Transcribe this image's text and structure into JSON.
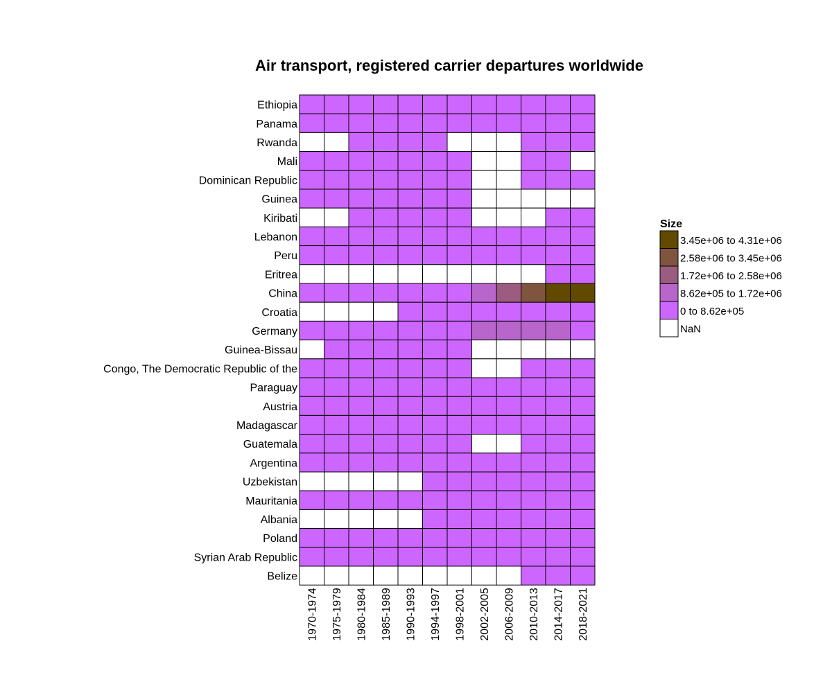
{
  "chart_data": {
    "type": "heatmap",
    "title": "Air transport, registered carrier departures worldwide",
    "columns": [
      "1970-1974",
      "1975-1979",
      "1980-1984",
      "1985-1989",
      "1990-1993",
      "1994-1997",
      "1998-2001",
      "2002-2005",
      "2006-2009",
      "2010-2013",
      "2014-2017",
      "2018-2021"
    ],
    "rows": [
      "Ethiopia",
      "Panama",
      "Rwanda",
      "Mali",
      "Dominican Republic",
      "Guinea",
      "Kiribati",
      "Lebanon",
      "Peru",
      "Eritrea",
      "China",
      "Croatia",
      "Germany",
      "Guinea-Bissau",
      "Congo, The Democratic Republic of the",
      "Paraguay",
      "Austria",
      "Madagascar",
      "Guatemala",
      "Argentina",
      "Uzbekistan",
      "Mauritania",
      "Albania",
      "Poland",
      "Syrian Arab Republic",
      "Belize"
    ],
    "bin_index": [
      [
        1,
        1,
        1,
        1,
        1,
        1,
        1,
        1,
        1,
        1,
        1,
        1
      ],
      [
        1,
        1,
        1,
        1,
        1,
        1,
        1,
        1,
        1,
        1,
        1,
        1
      ],
      [
        0,
        0,
        1,
        1,
        1,
        1,
        0,
        0,
        0,
        1,
        1,
        1
      ],
      [
        1,
        1,
        1,
        1,
        1,
        1,
        1,
        0,
        0,
        1,
        1,
        0
      ],
      [
        1,
        1,
        1,
        1,
        1,
        1,
        1,
        0,
        0,
        1,
        1,
        1
      ],
      [
        1,
        1,
        1,
        1,
        1,
        1,
        1,
        0,
        0,
        0,
        0,
        0
      ],
      [
        0,
        0,
        1,
        1,
        1,
        1,
        1,
        0,
        0,
        0,
        1,
        1
      ],
      [
        1,
        1,
        1,
        1,
        1,
        1,
        1,
        1,
        1,
        1,
        1,
        1
      ],
      [
        1,
        1,
        1,
        1,
        1,
        1,
        1,
        1,
        1,
        1,
        1,
        1
      ],
      [
        0,
        0,
        0,
        0,
        0,
        0,
        0,
        0,
        0,
        0,
        1,
        1
      ],
      [
        1,
        1,
        1,
        1,
        1,
        1,
        1,
        2,
        3,
        4,
        5,
        5
      ],
      [
        0,
        0,
        0,
        0,
        1,
        1,
        1,
        1,
        1,
        1,
        1,
        1
      ],
      [
        1,
        1,
        1,
        1,
        1,
        1,
        1,
        2,
        2,
        2,
        2,
        1
      ],
      [
        0,
        1,
        1,
        1,
        1,
        1,
        1,
        0,
        0,
        0,
        0,
        0
      ],
      [
        1,
        1,
        1,
        1,
        1,
        1,
        1,
        0,
        0,
        1,
        1,
        1
      ],
      [
        1,
        1,
        1,
        1,
        1,
        1,
        1,
        1,
        1,
        1,
        1,
        1
      ],
      [
        1,
        1,
        1,
        1,
        1,
        1,
        1,
        1,
        1,
        1,
        1,
        1
      ],
      [
        1,
        1,
        1,
        1,
        1,
        1,
        1,
        1,
        1,
        1,
        1,
        1
      ],
      [
        1,
        1,
        1,
        1,
        1,
        1,
        1,
        0,
        0,
        1,
        1,
        1
      ],
      [
        1,
        1,
        1,
        1,
        1,
        1,
        1,
        1,
        1,
        1,
        1,
        1
      ],
      [
        0,
        0,
        0,
        0,
        0,
        1,
        1,
        1,
        1,
        1,
        1,
        1
      ],
      [
        1,
        1,
        1,
        1,
        1,
        1,
        1,
        1,
        1,
        1,
        1,
        1
      ],
      [
        0,
        0,
        0,
        0,
        0,
        1,
        1,
        1,
        1,
        1,
        1,
        1
      ],
      [
        1,
        1,
        1,
        1,
        1,
        1,
        1,
        1,
        1,
        1,
        1,
        1
      ],
      [
        1,
        1,
        1,
        1,
        1,
        1,
        1,
        1,
        1,
        1,
        1,
        1
      ],
      [
        0,
        0,
        0,
        0,
        0,
        0,
        0,
        0,
        0,
        1,
        1,
        1
      ]
    ],
    "legend": {
      "title": "Size",
      "placement": "right",
      "bins": [
        {
          "label": "NaN",
          "color": "#ffffff"
        },
        {
          "label": "0 to 8.62e+05",
          "color": "#cc66ff"
        },
        {
          "label": "8.62e+05 to 1.72e+06",
          "color": "#b866cc"
        },
        {
          "label": "1.72e+06 to 2.58e+06",
          "color": "#9b5c80"
        },
        {
          "label": "2.58e+06 to 3.45e+06",
          "color": "#7f5540"
        },
        {
          "label": "3.45e+06 to 4.31e+06",
          "color": "#614a00"
        }
      ]
    }
  }
}
